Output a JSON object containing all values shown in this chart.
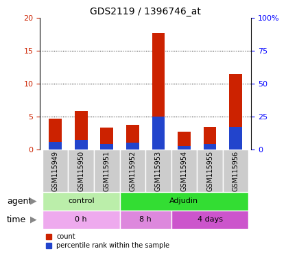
{
  "title": "GDS2119 / 1396746_at",
  "samples": [
    "GSM115949",
    "GSM115950",
    "GSM115951",
    "GSM115952",
    "GSM115953",
    "GSM115954",
    "GSM115955",
    "GSM115956"
  ],
  "count_values": [
    4.7,
    5.9,
    3.4,
    3.8,
    17.7,
    2.7,
    3.5,
    11.5
  ],
  "percentile_values": [
    1.2,
    1.5,
    0.9,
    1.1,
    5.0,
    0.6,
    0.9,
    3.5
  ],
  "bar_width": 0.5,
  "ylim_left": [
    0,
    20
  ],
  "ylim_right": [
    0,
    100
  ],
  "yticks_left": [
    0,
    5,
    10,
    15,
    20
  ],
  "yticks_right": [
    0,
    25,
    50,
    75,
    100
  ],
  "ytick_labels_left": [
    "0",
    "5",
    "10",
    "15",
    "20"
  ],
  "ytick_labels_right": [
    "0",
    "25",
    "50",
    "75",
    "100%"
  ],
  "count_color": "#cc2200",
  "percentile_color": "#2244cc",
  "agent_groups": [
    {
      "label": "control",
      "start": 0,
      "end": 3,
      "color": "#bbeeaa"
    },
    {
      "label": "Adjudin",
      "start": 3,
      "end": 8,
      "color": "#33dd33"
    }
  ],
  "time_groups": [
    {
      "label": "0 h",
      "start": 0,
      "end": 3,
      "color": "#eeaaee"
    },
    {
      "label": "8 h",
      "start": 3,
      "end": 5,
      "color": "#dd88dd"
    },
    {
      "label": "4 days",
      "start": 5,
      "end": 8,
      "color": "#cc55cc"
    }
  ],
  "agent_label": "agent",
  "time_label": "time",
  "legend_count": "count",
  "legend_percentile": "percentile rank within the sample",
  "background_color": "#ffffff",
  "title_fontsize": 10,
  "tick_fontsize": 8,
  "label_fontsize": 8,
  "sample_fontsize": 7,
  "rowlabel_fontsize": 9
}
